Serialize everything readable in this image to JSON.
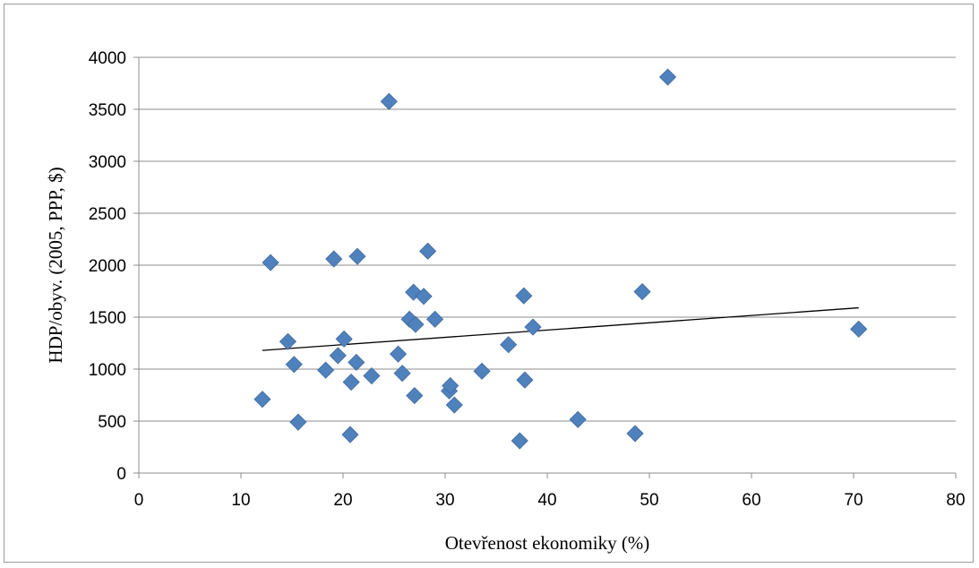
{
  "chart_data": {
    "type": "scatter",
    "xlabel": "Otevřenost ekonomiky (%)",
    "ylabel": "HDP/obyv. (2005, PPP, $)",
    "xlim": [
      0,
      80
    ],
    "ylim": [
      0,
      4000
    ],
    "x_ticks": [
      0,
      10,
      20,
      30,
      40,
      50,
      60,
      70,
      80
    ],
    "y_ticks": [
      0,
      500,
      1000,
      1500,
      2000,
      2500,
      3000,
      3500,
      4000
    ],
    "grid": "horizontal",
    "marker_color": "#4f81bd",
    "trendline_color": "#000000",
    "trendline": {
      "x": [
        12.1,
        70.5
      ],
      "y": [
        1180,
        1590
      ]
    },
    "points": [
      {
        "x": 12.1,
        "y": 710
      },
      {
        "x": 12.9,
        "y": 2025
      },
      {
        "x": 14.6,
        "y": 1265
      },
      {
        "x": 15.2,
        "y": 1045
      },
      {
        "x": 15.6,
        "y": 490
      },
      {
        "x": 18.3,
        "y": 990
      },
      {
        "x": 19.1,
        "y": 2060
      },
      {
        "x": 19.5,
        "y": 1130
      },
      {
        "x": 20.1,
        "y": 1290
      },
      {
        "x": 20.7,
        "y": 370
      },
      {
        "x": 20.8,
        "y": 875
      },
      {
        "x": 21.3,
        "y": 1065
      },
      {
        "x": 21.4,
        "y": 2085
      },
      {
        "x": 22.8,
        "y": 935
      },
      {
        "x": 24.5,
        "y": 3575
      },
      {
        "x": 25.4,
        "y": 1145
      },
      {
        "x": 25.8,
        "y": 960
      },
      {
        "x": 26.5,
        "y": 1480
      },
      {
        "x": 26.9,
        "y": 1740
      },
      {
        "x": 27.0,
        "y": 745
      },
      {
        "x": 27.1,
        "y": 1430
      },
      {
        "x": 27.9,
        "y": 1700
      },
      {
        "x": 28.3,
        "y": 2135
      },
      {
        "x": 29.0,
        "y": 1480
      },
      {
        "x": 30.4,
        "y": 790
      },
      {
        "x": 30.5,
        "y": 840
      },
      {
        "x": 30.9,
        "y": 655
      },
      {
        "x": 33.6,
        "y": 980
      },
      {
        "x": 36.2,
        "y": 1235
      },
      {
        "x": 37.3,
        "y": 310
      },
      {
        "x": 37.7,
        "y": 1705
      },
      {
        "x": 37.8,
        "y": 895
      },
      {
        "x": 38.6,
        "y": 1405
      },
      {
        "x": 43.0,
        "y": 515
      },
      {
        "x": 48.6,
        "y": 380
      },
      {
        "x": 49.3,
        "y": 1745
      },
      {
        "x": 51.8,
        "y": 3810
      },
      {
        "x": 70.5,
        "y": 1385
      }
    ]
  }
}
